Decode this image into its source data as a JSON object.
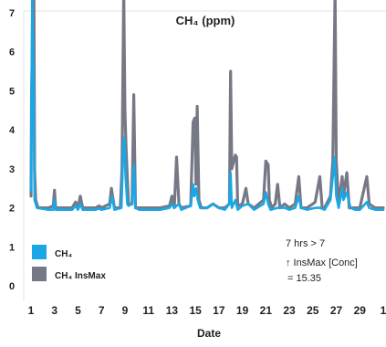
{
  "chart_data": {
    "type": "line",
    "title": "CH₄ (ppm)",
    "xlabel": "Date",
    "ylabel": "",
    "ylim": [
      0,
      7.5
    ],
    "yticks": [
      "0",
      "1",
      "2",
      "3",
      "4",
      "5",
      "6",
      "7"
    ],
    "xlim": [
      1,
      31
    ],
    "xticks": [
      "1",
      "3",
      "5",
      "7",
      "9",
      "11",
      "13",
      "15",
      "17",
      "19",
      "21",
      "23",
      "25",
      "27",
      "29",
      "1"
    ],
    "grid": false,
    "legend_position": "bottom-left",
    "series": [
      {
        "name": "CH₄",
        "color": "#1aa7e6",
        "points": [
          [
            1.0,
            2.45
          ],
          [
            1.05,
            5.0
          ],
          [
            1.1,
            7.3
          ],
          [
            1.2,
            5.5
          ],
          [
            1.3,
            2.2
          ],
          [
            1.5,
            2.0
          ],
          [
            2.5,
            1.95
          ],
          [
            2.9,
            1.95
          ],
          [
            3.0,
            2.2
          ],
          [
            3.1,
            1.95
          ],
          [
            4.5,
            1.95
          ],
          [
            4.8,
            2.05
          ],
          [
            5.0,
            1.95
          ],
          [
            5.2,
            2.1
          ],
          [
            5.4,
            1.95
          ],
          [
            6.5,
            1.95
          ],
          [
            6.8,
            1.98
          ],
          [
            7.0,
            1.95
          ],
          [
            7.7,
            2.0
          ],
          [
            7.9,
            2.3
          ],
          [
            8.1,
            1.95
          ],
          [
            8.7,
            2.0
          ],
          [
            8.85,
            3.5
          ],
          [
            8.95,
            3.8
          ],
          [
            9.05,
            2.8
          ],
          [
            9.2,
            2.1
          ],
          [
            9.3,
            2.05
          ],
          [
            9.6,
            2.1
          ],
          [
            9.75,
            3.1
          ],
          [
            9.9,
            2.0
          ],
          [
            10.2,
            1.95
          ],
          [
            12.0,
            1.95
          ],
          [
            12.8,
            2.0
          ],
          [
            13.0,
            2.1
          ],
          [
            13.2,
            2.0
          ],
          [
            13.6,
            2.1
          ],
          [
            13.8,
            1.95
          ],
          [
            14.6,
            2.05
          ],
          [
            14.8,
            2.6
          ],
          [
            14.9,
            2.3
          ],
          [
            15.05,
            2.5
          ],
          [
            15.2,
            2.2
          ],
          [
            15.4,
            2.0
          ],
          [
            16.0,
            2.0
          ],
          [
            16.5,
            2.1
          ],
          [
            17.0,
            2.0
          ],
          [
            17.5,
            1.95
          ],
          [
            17.9,
            2.1
          ],
          [
            18.0,
            2.9
          ],
          [
            18.1,
            2.0
          ],
          [
            18.4,
            2.2
          ],
          [
            18.6,
            1.95
          ],
          [
            19.0,
            2.05
          ],
          [
            19.5,
            2.1
          ],
          [
            20.0,
            1.95
          ],
          [
            20.8,
            2.1
          ],
          [
            21.0,
            2.4
          ],
          [
            21.2,
            2.1
          ],
          [
            21.4,
            1.95
          ],
          [
            22.0,
            2.0
          ],
          [
            22.6,
            2.0
          ],
          [
            23.0,
            1.95
          ],
          [
            23.5,
            2.0
          ],
          [
            23.8,
            2.3
          ],
          [
            24.0,
            2.0
          ],
          [
            24.5,
            1.95
          ],
          [
            25.2,
            2.0
          ],
          [
            25.6,
            2.0
          ],
          [
            26.0,
            1.95
          ],
          [
            26.5,
            2.2
          ],
          [
            26.7,
            2.8
          ],
          [
            26.85,
            3.3
          ],
          [
            27.0,
            2.3
          ],
          [
            27.2,
            2.0
          ],
          [
            27.5,
            2.5
          ],
          [
            27.6,
            2.2
          ],
          [
            27.9,
            2.4
          ],
          [
            28.2,
            2.0
          ],
          [
            28.6,
            1.95
          ],
          [
            29.0,
            1.95
          ],
          [
            29.6,
            2.15
          ],
          [
            29.8,
            2.0
          ],
          [
            30.3,
            1.95
          ],
          [
            31.0,
            1.95
          ]
        ]
      },
      {
        "name": "CH₄ InsMax",
        "color": "#767985",
        "points": [
          [
            1.0,
            2.3
          ],
          [
            1.05,
            5.0
          ],
          [
            1.1,
            5.8
          ],
          [
            1.15,
            7.6
          ],
          [
            1.25,
            7.6
          ],
          [
            1.3,
            3.0
          ],
          [
            1.4,
            2.2
          ],
          [
            1.6,
            2.0
          ],
          [
            2.5,
            2.0
          ],
          [
            2.9,
            2.05
          ],
          [
            3.0,
            2.45
          ],
          [
            3.1,
            2.0
          ],
          [
            4.5,
            2.0
          ],
          [
            4.8,
            2.15
          ],
          [
            5.0,
            2.0
          ],
          [
            5.2,
            2.3
          ],
          [
            5.4,
            2.0
          ],
          [
            6.5,
            2.0
          ],
          [
            6.8,
            2.05
          ],
          [
            7.0,
            2.0
          ],
          [
            7.7,
            2.1
          ],
          [
            7.85,
            2.5
          ],
          [
            7.95,
            2.3
          ],
          [
            8.1,
            2.0
          ],
          [
            8.6,
            2.0
          ],
          [
            8.75,
            3.0
          ],
          [
            8.9,
            7.6
          ],
          [
            9.0,
            4.5
          ],
          [
            9.1,
            3.5
          ],
          [
            9.3,
            2.1
          ],
          [
            9.6,
            2.1
          ],
          [
            9.75,
            4.9
          ],
          [
            9.9,
            2.0
          ],
          [
            10.2,
            2.0
          ],
          [
            12.0,
            2.0
          ],
          [
            12.8,
            2.05
          ],
          [
            13.0,
            2.3
          ],
          [
            13.2,
            2.0
          ],
          [
            13.4,
            3.3
          ],
          [
            13.6,
            2.1
          ],
          [
            13.8,
            2.0
          ],
          [
            14.6,
            2.05
          ],
          [
            14.8,
            4.2
          ],
          [
            14.95,
            4.3
          ],
          [
            15.05,
            2.6
          ],
          [
            15.15,
            4.6
          ],
          [
            15.3,
            2.2
          ],
          [
            15.5,
            2.0
          ],
          [
            16.0,
            2.0
          ],
          [
            16.5,
            2.1
          ],
          [
            17.0,
            2.0
          ],
          [
            17.5,
            2.0
          ],
          [
            17.9,
            2.1
          ],
          [
            18.0,
            5.5
          ],
          [
            18.1,
            3.0
          ],
          [
            18.4,
            3.35
          ],
          [
            18.5,
            3.3
          ],
          [
            18.6,
            2.05
          ],
          [
            19.0,
            2.1
          ],
          [
            19.3,
            2.5
          ],
          [
            19.5,
            2.1
          ],
          [
            20.0,
            2.0
          ],
          [
            20.8,
            2.2
          ],
          [
            21.0,
            3.2
          ],
          [
            21.2,
            3.1
          ],
          [
            21.3,
            2.2
          ],
          [
            21.5,
            2.0
          ],
          [
            21.8,
            2.1
          ],
          [
            22.0,
            2.6
          ],
          [
            22.2,
            2.0
          ],
          [
            22.6,
            2.1
          ],
          [
            23.0,
            2.0
          ],
          [
            23.5,
            2.1
          ],
          [
            23.8,
            2.8
          ],
          [
            24.0,
            2.0
          ],
          [
            24.5,
            2.0
          ],
          [
            25.0,
            2.1
          ],
          [
            25.2,
            2.15
          ],
          [
            25.6,
            2.8
          ],
          [
            25.8,
            2.0
          ],
          [
            26.0,
            2.0
          ],
          [
            26.5,
            2.3
          ],
          [
            26.7,
            3.2
          ],
          [
            26.9,
            7.6
          ],
          [
            27.0,
            3.2
          ],
          [
            27.2,
            2.1
          ],
          [
            27.5,
            2.8
          ],
          [
            27.6,
            2.3
          ],
          [
            27.9,
            2.9
          ],
          [
            28.1,
            2.0
          ],
          [
            28.6,
            2.0
          ],
          [
            29.0,
            2.0
          ],
          [
            29.6,
            2.8
          ],
          [
            29.8,
            2.1
          ],
          [
            30.3,
            2.0
          ],
          [
            31.0,
            2.0
          ]
        ]
      }
    ],
    "annotation": [
      "7 hrs > 7",
      "↑ InsMax [Conc]",
      "= 15.35"
    ]
  }
}
